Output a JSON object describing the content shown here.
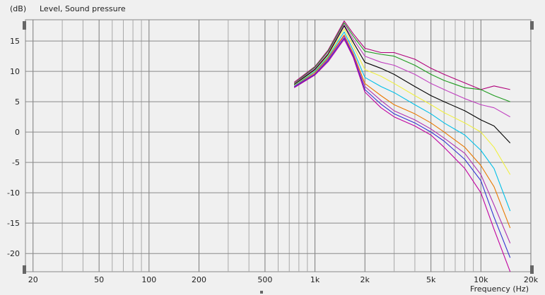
{
  "chart_data": {
    "type": "line",
    "title": "Level, Sound pressure",
    "ylabel": "(dB)",
    "xlabel": "Frequency (Hz)",
    "x_scale": "log",
    "xlim": [
      18,
      20000
    ],
    "ylim": [
      -23,
      18.5
    ],
    "x_ticks": [
      20,
      50,
      100,
      200,
      500,
      1000,
      2000,
      5000,
      10000,
      20000
    ],
    "x_tick_labels": [
      "20",
      "50",
      "100",
      "200",
      "500",
      "1k",
      "2k",
      "5k",
      "10k",
      "20k"
    ],
    "y_ticks": [
      15,
      10,
      5,
      0,
      -5,
      -10,
      -15,
      -20
    ],
    "y_tick_labels": [
      "15",
      "10",
      "5",
      "0",
      "-5",
      "-10",
      "-15",
      "-20"
    ],
    "grid": true,
    "x": [
      750,
      1000,
      1200,
      1500,
      1700,
      2000,
      2500,
      3000,
      4000,
      5000,
      6000,
      8000,
      10000,
      12000,
      15000
    ],
    "series": [
      {
        "color": "#b0007a",
        "values": [
          8.2,
          10.8,
          13.5,
          18.3,
          16.2,
          13.8,
          13.1,
          13.1,
          12.0,
          10.5,
          9.5,
          8.1,
          7.0,
          7.6,
          7.0
        ]
      },
      {
        "color": "#1e9a1e",
        "values": [
          8.0,
          10.7,
          13.3,
          18.0,
          15.8,
          13.3,
          12.8,
          12.5,
          11.0,
          9.5,
          8.5,
          7.3,
          7.0,
          6.0,
          5.0
        ]
      },
      {
        "color": "#c040c0",
        "values": [
          7.9,
          10.5,
          13.0,
          17.7,
          15.3,
          12.5,
          11.5,
          11.0,
          9.5,
          8.0,
          7.0,
          5.5,
          4.5,
          4.0,
          2.5
        ]
      },
      {
        "color": "#000000",
        "values": [
          7.8,
          10.3,
          12.8,
          17.5,
          14.8,
          11.5,
          10.5,
          9.5,
          7.5,
          6.0,
          5.0,
          3.5,
          2.0,
          1.0,
          -1.8
        ]
      },
      {
        "color": "#f0f040",
        "values": [
          7.7,
          10.1,
          12.6,
          17.0,
          14.2,
          10.3,
          9.2,
          8.0,
          6.0,
          4.5,
          3.2,
          1.5,
          0.0,
          -2.5,
          -7.0
        ]
      },
      {
        "color": "#00bfe8",
        "values": [
          7.6,
          10.0,
          12.4,
          16.5,
          13.5,
          9.0,
          7.5,
          6.5,
          4.5,
          3.0,
          1.5,
          -0.5,
          -3.0,
          -6.0,
          -13.0
        ]
      },
      {
        "color": "#e87800",
        "values": [
          7.5,
          9.8,
          12.2,
          16.0,
          13.0,
          8.0,
          6.0,
          4.5,
          3.0,
          1.5,
          0.0,
          -2.5,
          -5.5,
          -9.0,
          -15.8
        ]
      },
      {
        "color": "#b030b0",
        "values": [
          7.5,
          9.6,
          12.0,
          15.8,
          12.7,
          7.5,
          5.2,
          3.5,
          2.0,
          0.5,
          -1.0,
          -3.5,
          -7.0,
          -12.0,
          -18.3
        ]
      },
      {
        "color": "#3030d0",
        "values": [
          7.4,
          9.5,
          11.8,
          15.5,
          12.5,
          7.0,
          4.6,
          3.0,
          1.5,
          0.0,
          -1.5,
          -4.5,
          -8.0,
          -14.0,
          -20.7
        ]
      },
      {
        "color": "#c000a0",
        "values": [
          7.3,
          9.4,
          11.6,
          15.3,
          12.3,
          6.6,
          4.0,
          2.5,
          1.0,
          -0.5,
          -2.5,
          -6.0,
          -10.0,
          -16.0,
          -23.0
        ]
      }
    ]
  }
}
